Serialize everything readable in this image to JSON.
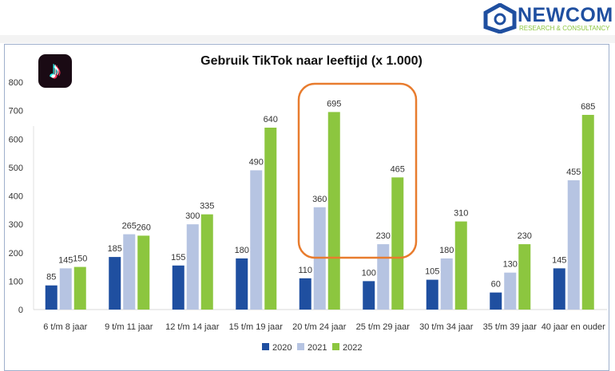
{
  "brand": {
    "name": "NEWCOM",
    "tagline": "RESEARCH & CONSULTANCY",
    "app_icon": "tiktok-logo"
  },
  "colors": {
    "2020": "#1f4fa0",
    "2021": "#b6c4e2",
    "2022": "#8cc63f",
    "highlight": "#e87c2e"
  },
  "chart_data": {
    "type": "bar",
    "title": "Gebruik TikTok naar leeftijd (x 1.000)",
    "categories": [
      "6 t/m 8 jaar",
      "9 t/m 11 jaar",
      "12 t/m 14 jaar",
      "15 t/m 19 jaar",
      "20 t/m 24 jaar",
      "25 t/m 29 jaar",
      "30 t/m 34 jaar",
      "35 t/m 39 jaar",
      "40 jaar en ouder"
    ],
    "series": [
      {
        "name": "2020",
        "values": [
          85,
          185,
          155,
          180,
          110,
          100,
          105,
          60,
          145
        ]
      },
      {
        "name": "2021",
        "values": [
          145,
          265,
          300,
          490,
          360,
          230,
          180,
          130,
          455
        ]
      },
      {
        "name": "2022",
        "values": [
          150,
          260,
          335,
          640,
          695,
          465,
          310,
          230,
          685
        ]
      }
    ],
    "ylim": [
      0,
      800
    ],
    "yticks": [
      0,
      100,
      200,
      300,
      400,
      500,
      600,
      700,
      800
    ],
    "grid": false,
    "legend": "bottom",
    "highlight": [
      "20 t/m 24 jaar",
      "25 t/m 29 jaar"
    ]
  }
}
